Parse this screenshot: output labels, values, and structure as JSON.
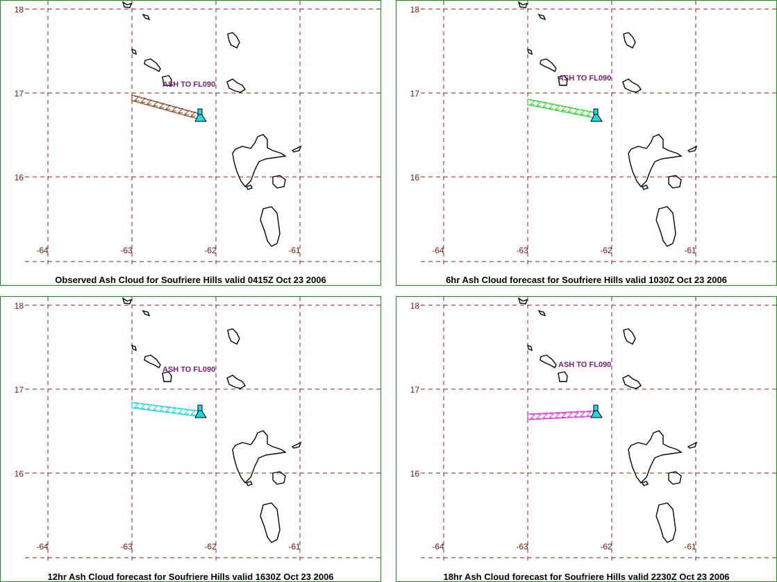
{
  "panels": [
    {
      "caption": "Observed Ash Cloud for Soufriere  Hills valid 0415Z Oct 23 2006",
      "label": "ASH TO FL090",
      "ash_color": "#8b4a2a"
    },
    {
      "caption": "6hr Ash Cloud forecast for Soufriere  Hills valid 1030Z Oct 23 2006",
      "label": "ASH TO FL090",
      "ash_color": "#39d339"
    },
    {
      "caption": "12hr Ash Cloud forecast for Soufriere  Hills valid 1630Z Oct 23 2006",
      "label": "ASH TO FL090",
      "ash_color": "#22d6e0"
    },
    {
      "caption": "18hr Ash Cloud forecast for Soufriere  Hills valid 2230Z Oct 23 2006",
      "label": "ASH TO FL090",
      "ash_color": "#e040e0"
    }
  ],
  "lat_labels": [
    "18",
    "17",
    "16"
  ],
  "lon_labels": [
    "-64",
    "-63",
    "-62",
    "-61"
  ],
  "grid_color": "#8b1a1a",
  "volcano_marker_color": "#22d6e0",
  "label_color": "#7a1a7a",
  "volcano_icon": "volcano-triangle-icon"
}
